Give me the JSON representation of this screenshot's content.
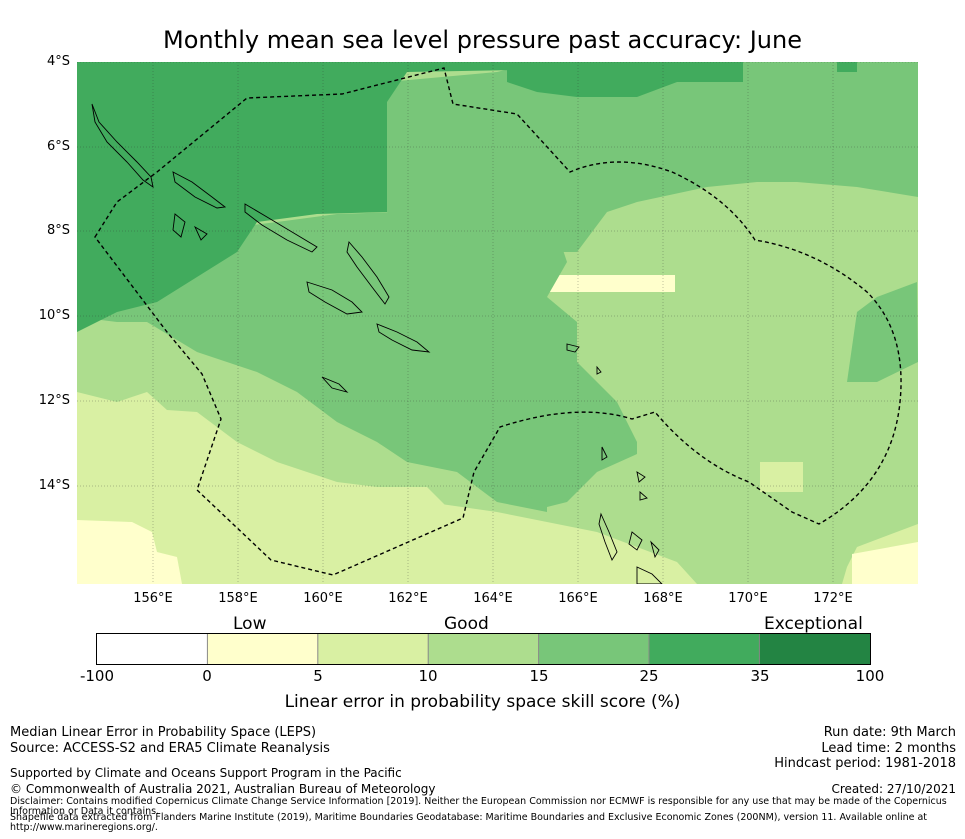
{
  "title": "Monthly mean sea level pressure past accuracy: June",
  "map": {
    "lat_labels": [
      "4°S",
      "6°S",
      "8°S",
      "10°S",
      "12°S",
      "14°S"
    ],
    "lon_labels": [
      "156°E",
      "158°E",
      "160°E",
      "162°E",
      "164°E",
      "166°E",
      "168°E",
      "170°E",
      "172°E"
    ],
    "extent": {
      "lon_min": 154.2,
      "lon_max": 174.0,
      "lat_min": -16.3,
      "lat_max": -4.0
    },
    "lat_values": [
      -4,
      -6,
      -8,
      -10,
      -12,
      -14
    ],
    "lon_values": [
      156,
      158,
      160,
      162,
      164,
      166,
      168,
      170,
      172
    ],
    "regions": [
      {
        "category": "25-35",
        "color": "#41ab5d"
      },
      {
        "category": "15-25",
        "color": "#78c679"
      },
      {
        "category": "10-15",
        "color": "#addd8e"
      },
      {
        "category": "5-10",
        "color": "#d9f0a3"
      },
      {
        "category": "0-5",
        "color": "#ffffcc"
      }
    ]
  },
  "colorbar": {
    "categories": [
      "Low",
      "Good",
      "Exceptional"
    ],
    "ticks": [
      "-100",
      "0",
      "5",
      "10",
      "15",
      "25",
      "35",
      "100"
    ],
    "colors": [
      "#ffffff",
      "#ffffcc",
      "#d9f0a3",
      "#addd8e",
      "#78c679",
      "#41ab5d",
      "#238443"
    ],
    "label": "Linear error in probability space skill score (%)"
  },
  "footer": {
    "left_line1": "Median Linear Error in Probability Space (LEPS)",
    "left_line2": "Source: ACCESS-S2 and ERA5 Climate Reanalysis",
    "supported": "Supported by Climate and Oceans Support Program in the Pacific",
    "copyright": "© Commonwealth of Australia 2021, Australian Bureau of Meteorology",
    "disclaimer": "Disclaimer: Contains modified Copernicus Climate Change Service Information [2019]. Neither the European Commission nor ECMWF is responsible for any use that may be made of the Copernicus Information or Data it contains.",
    "shapefile": "Shapefile data extracted from Flanders Marine Institute (2019), Maritime Boundaries Geodatabase: Maritime Boundaries and Exclusive Economic Zones (200NM), version 11. Available online at http://www.marineregions.org/.",
    "run_date": "Run date: 9th March",
    "lead_time": "Lead time: 2 months",
    "hindcast": "Hindcast period: 1981-2018",
    "created": "Created: 27/10/2021"
  }
}
